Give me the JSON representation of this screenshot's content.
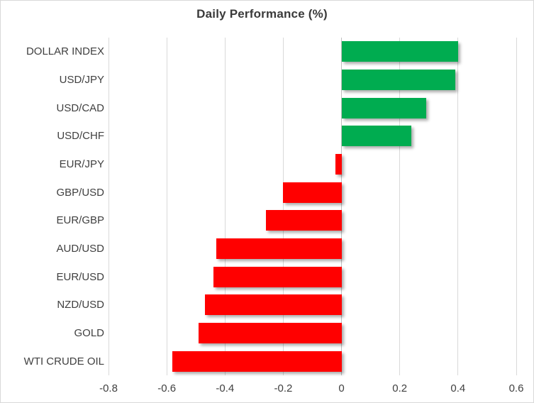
{
  "chart_data": {
    "type": "bar",
    "orientation": "horizontal",
    "title": "Daily Performance (%)",
    "categories": [
      "DOLLAR INDEX",
      "USD/JPY",
      "USD/CAD",
      "USD/CHF",
      "EUR/JPY",
      "GBP/USD",
      "EUR/GBP",
      "AUD/USD",
      "EUR/USD",
      "NZD/USD",
      "GOLD",
      "WTI CRUDE OIL"
    ],
    "values": [
      0.4,
      0.39,
      0.29,
      0.24,
      -0.02,
      -0.2,
      -0.26,
      -0.43,
      -0.44,
      -0.47,
      -0.49,
      -0.58
    ],
    "xlabel": "",
    "ylabel": "",
    "xlim": [
      -0.8,
      0.6
    ],
    "x_ticks": [
      -0.8,
      -0.6,
      -0.4,
      -0.2,
      0,
      0.2,
      0.4,
      0.6
    ],
    "x_tick_labels": [
      "-0.8",
      "-0.6",
      "-0.4",
      "-0.2",
      "0",
      "0.2",
      "0.4",
      "0.6"
    ],
    "grid": true,
    "legend": false,
    "colors": {
      "positive_bar": "#00AC50",
      "negative_bar": "#FF0000",
      "gridline": "#D9D9D9",
      "zero_axis": "#BFBFBF",
      "text": "#404040",
      "title_text": "#3A3A3A",
      "frame_border": "#D9D9D9",
      "background": "#FFFFFF"
    }
  }
}
